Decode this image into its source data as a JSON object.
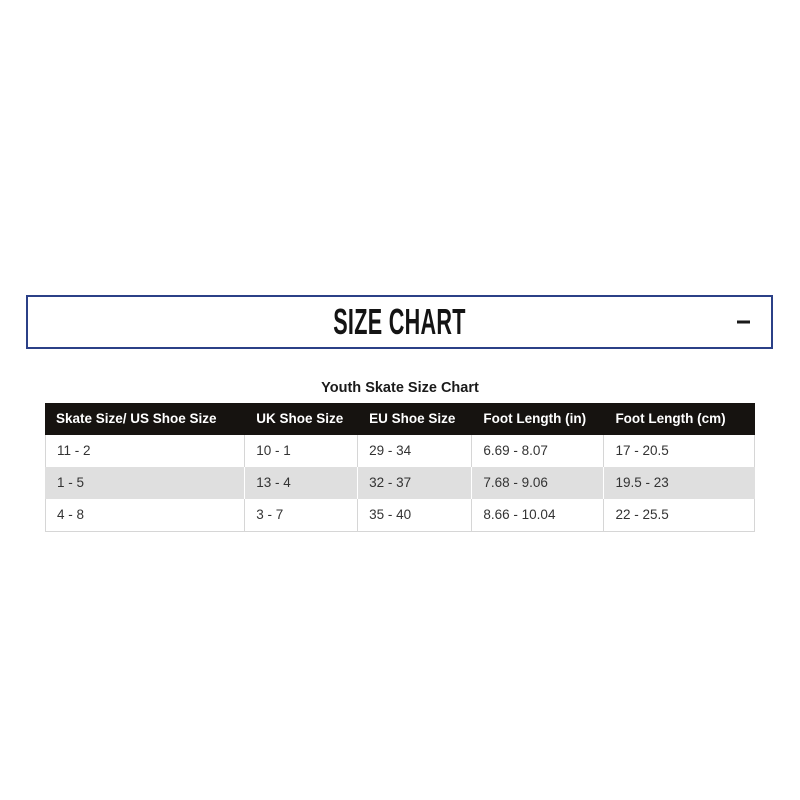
{
  "accordion": {
    "title": "SIZE CHART",
    "collapse_icon": "minus",
    "expanded": true
  },
  "size_chart": {
    "caption": "Youth Skate Size Chart",
    "columns": [
      "Skate Size/ US Shoe Size",
      "UK Shoe Size",
      "EU Shoe Size",
      "Foot Length (in)",
      "Foot Length (cm)"
    ],
    "rows": [
      [
        "11 - 2",
        "10 - 1",
        "29 - 34",
        "6.69 - 8.07",
        "17 - 20.5"
      ],
      [
        "1 - 5",
        "13 - 4",
        "32 - 37",
        "7.68 - 9.06",
        "19.5 - 23"
      ],
      [
        "4 - 8",
        "3 - 7",
        "35 - 40",
        "8.66 - 10.04",
        "22 - 25.5"
      ]
    ]
  },
  "colors": {
    "accent_border": "#2b4087",
    "table_header_bg": "#161310",
    "table_header_text": "#ffffff",
    "stripe_bg": "#dfdfdf",
    "cell_text": "#333333",
    "divider": "#d6d6d6"
  }
}
